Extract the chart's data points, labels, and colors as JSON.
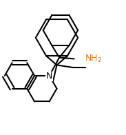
{
  "background_color": "#ffffff",
  "line_color": "#000000",
  "label_N_color": "#000000",
  "label_NH2_color": "#e07820",
  "line_width": 1.5,
  "font_size_N": 9,
  "font_size_NH2": 9,
  "figsize": [
    1.83,
    1.96
  ],
  "dpi": 100
}
